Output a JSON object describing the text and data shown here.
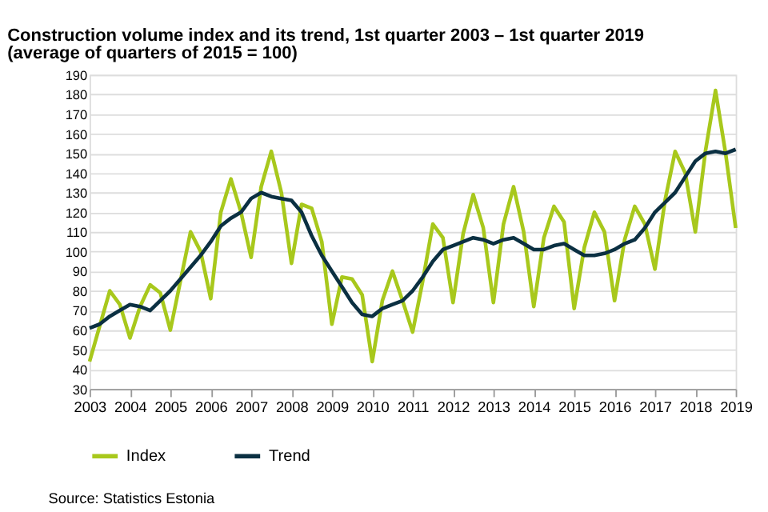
{
  "chart_data": {
    "type": "line",
    "title": "Construction volume index and its trend, 1st quarter 2003 – 1st quarter 2019",
    "subtitle": "(average of quarters of 2015 = 100)",
    "x": [
      2003,
      2003.25,
      2003.5,
      2003.75,
      2004,
      2004.25,
      2004.5,
      2004.75,
      2005,
      2005.25,
      2005.5,
      2005.75,
      2006,
      2006.25,
      2006.5,
      2006.75,
      2007,
      2007.25,
      2007.5,
      2007.75,
      2008,
      2008.25,
      2008.5,
      2008.75,
      2009,
      2009.25,
      2009.5,
      2009.75,
      2010,
      2010.25,
      2010.5,
      2010.75,
      2011,
      2011.25,
      2011.5,
      2011.75,
      2012,
      2012.25,
      2012.5,
      2012.75,
      2013,
      2013.25,
      2013.5,
      2013.75,
      2014,
      2014.25,
      2014.5,
      2014.75,
      2015,
      2015.25,
      2015.5,
      2015.75,
      2016,
      2016.25,
      2016.5,
      2016.75,
      2017,
      2017.25,
      2017.5,
      2017.75,
      2018,
      2018.25,
      2018.5,
      2018.75,
      2019
    ],
    "series": [
      {
        "name": "Index",
        "color": "#a8c81c",
        "values": [
          44,
          62,
          80,
          73,
          56,
          72,
          83,
          79,
          60,
          85,
          110,
          100,
          76,
          120,
          137,
          120,
          97,
          133,
          151,
          130,
          94,
          124,
          122,
          105,
          63,
          87,
          86,
          78,
          44,
          75,
          90,
          75,
          59,
          85,
          114,
          107,
          74,
          109,
          129,
          112,
          74,
          114,
          133,
          110,
          72,
          107,
          123,
          115,
          71,
          102,
          120,
          110,
          75,
          106,
          123,
          114,
          91,
          126,
          151,
          140,
          110,
          151,
          182,
          150,
          112
        ]
      },
      {
        "name": "Trend",
        "color": "#0b3042",
        "values": [
          61,
          63,
          67,
          70,
          73,
          72,
          70,
          75,
          80,
          86,
          92,
          98,
          105,
          113,
          117,
          120,
          127,
          130,
          128,
          127,
          126,
          120,
          108,
          98,
          90,
          82,
          74,
          68,
          67,
          71,
          73,
          75,
          80,
          87,
          95,
          101,
          103,
          105,
          107,
          106,
          104,
          106,
          107,
          104,
          101,
          101,
          103,
          104,
          101,
          98,
          98,
          99,
          101,
          104,
          106,
          112,
          120,
          125,
          130,
          138,
          146,
          150,
          151,
          150,
          152
        ]
      }
    ],
    "xlim": [
      2003,
      2019
    ],
    "xticks": [
      2003,
      2004,
      2005,
      2006,
      2007,
      2008,
      2009,
      2010,
      2011,
      2012,
      2013,
      2014,
      2015,
      2016,
      2017,
      2018,
      2019
    ],
    "ylim": [
      30,
      190
    ],
    "yticks": [
      30,
      40,
      50,
      60,
      70,
      80,
      90,
      100,
      110,
      120,
      130,
      140,
      150,
      160,
      170,
      180,
      190
    ],
    "grid": "y",
    "legend": "bottom",
    "marker": "none",
    "line_style": "solid",
    "annotations": [
      "Source: Statistics Estonia"
    ]
  }
}
